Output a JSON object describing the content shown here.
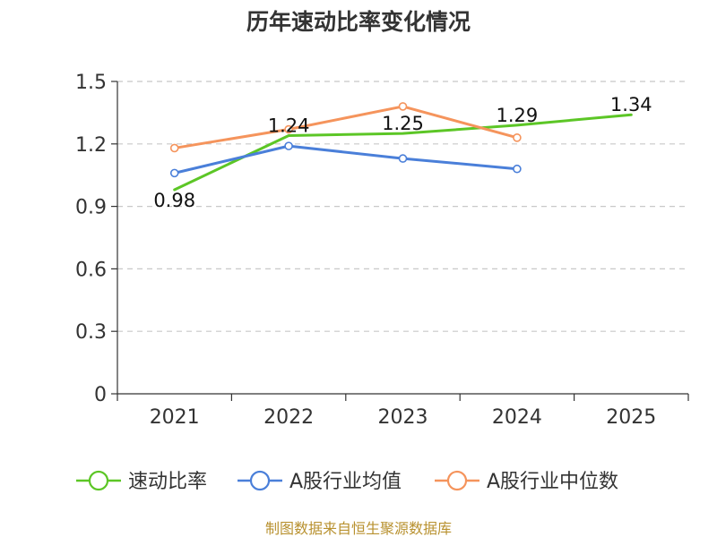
{
  "chart_data": {
    "type": "line",
    "title": "历年速动比率变化情况",
    "categories": [
      "2021",
      "2022",
      "2023",
      "2024",
      "2025"
    ],
    "ylim": [
      0,
      1.5
    ],
    "yticks": [
      "0",
      "0.3",
      "0.6",
      "0.9",
      "1.2",
      "1.5"
    ],
    "ytick_values": [
      0,
      0.3,
      0.6,
      0.9,
      1.2,
      1.5
    ],
    "grid": true,
    "legend_position": "bottom",
    "series": [
      {
        "name": "速动比率",
        "color": "#5cc626",
        "values": [
          0.98,
          1.24,
          1.25,
          1.29,
          1.34
        ],
        "labels": [
          "0.98",
          "1.24",
          "1.25",
          "1.29",
          "1.34"
        ],
        "show_markers": false
      },
      {
        "name": "A股行业均值",
        "color": "#4a7fd9",
        "values": [
          1.06,
          1.19,
          1.13,
          1.08,
          null
        ],
        "show_markers": true
      },
      {
        "name": "A股行业中位数",
        "color": "#f5945c",
        "values": [
          1.18,
          1.27,
          1.38,
          1.23,
          null
        ],
        "show_markers": true
      }
    ],
    "source": "制图数据来自恒生聚源数据库"
  }
}
